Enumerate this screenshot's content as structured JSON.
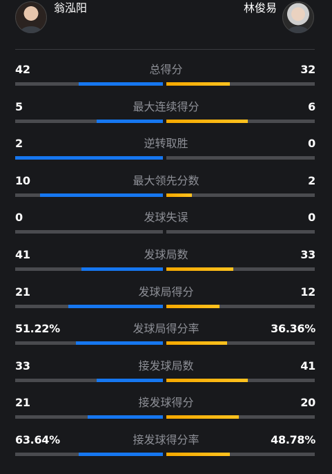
{
  "players": {
    "left": {
      "name": "翁泓阳"
    },
    "right": {
      "name": "林俊易"
    }
  },
  "colors": {
    "left_bar": "#1677f0",
    "right_bar": "#f5a800",
    "track": "#4a4b4f",
    "background": "#18191c"
  },
  "stats": [
    {
      "label": "总得分",
      "left": "42",
      "right": "32",
      "left_fill": 0.57,
      "right_fill": 0.43
    },
    {
      "label": "最大连续得分",
      "left": "5",
      "right": "6",
      "left_fill": 0.45,
      "right_fill": 0.55
    },
    {
      "label": "逆转取胜",
      "left": "2",
      "right": "0",
      "left_fill": 1.0,
      "right_fill": 0.0
    },
    {
      "label": "最大领先分数",
      "left": "10",
      "right": "2",
      "left_fill": 0.83,
      "right_fill": 0.17
    },
    {
      "label": "发球失误",
      "left": "0",
      "right": "0",
      "left_fill": 0.0,
      "right_fill": 0.0
    },
    {
      "label": "发球局数",
      "left": "41",
      "right": "33",
      "left_fill": 0.55,
      "right_fill": 0.45
    },
    {
      "label": "发球局得分",
      "left": "21",
      "right": "12",
      "left_fill": 0.64,
      "right_fill": 0.36
    },
    {
      "label": "发球局得分率",
      "left": "51.22%",
      "right": "36.36%",
      "left_fill": 0.59,
      "right_fill": 0.41
    },
    {
      "label": "接发球局数",
      "left": "33",
      "right": "41",
      "left_fill": 0.45,
      "right_fill": 0.55
    },
    {
      "label": "接发球得分",
      "left": "21",
      "right": "20",
      "left_fill": 0.51,
      "right_fill": 0.49
    },
    {
      "label": "接发球得分率",
      "left": "63.64%",
      "right": "48.78%",
      "left_fill": 0.57,
      "right_fill": 0.43
    }
  ]
}
